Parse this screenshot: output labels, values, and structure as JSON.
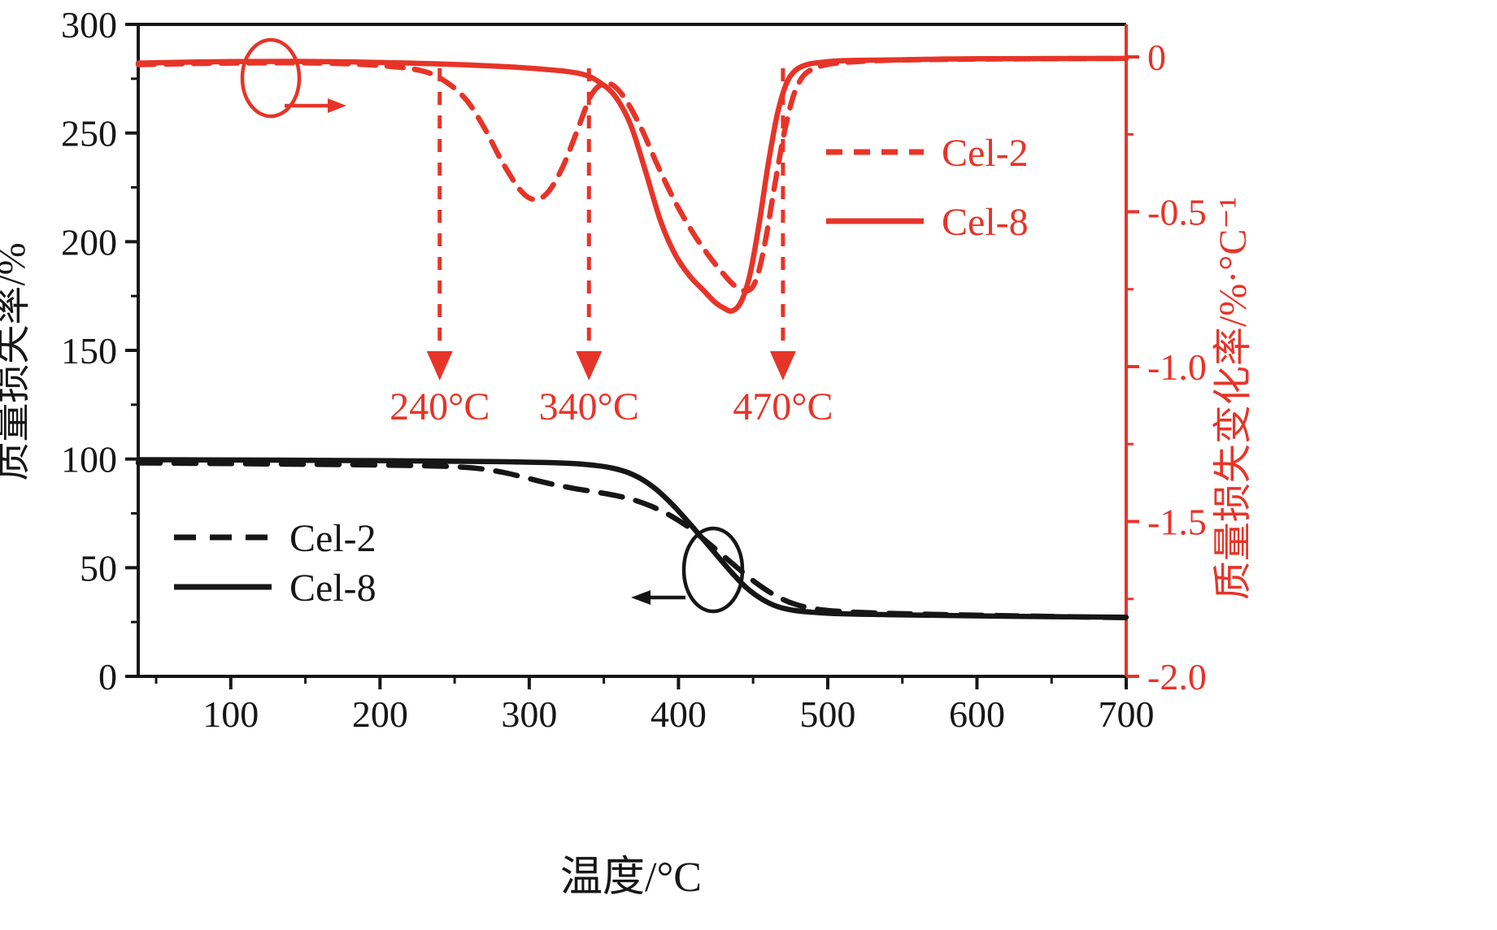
{
  "colors": {
    "accent_red": "#e73428",
    "curve_black": "#161616",
    "background": "#ffffff"
  },
  "chart_data": {
    "type": "line",
    "title": "",
    "xlabel": "温度/°C",
    "ylabel_left": "质量损失率/%",
    "ylabel_right": "质量损失变化率/%·°C⁻¹",
    "x_range": [
      38,
      700
    ],
    "x_ticks": [
      100,
      200,
      300,
      400,
      500,
      600,
      700
    ],
    "y_left_range": [
      0,
      300
    ],
    "y_left_ticks": [
      0,
      50,
      100,
      150,
      200,
      250,
      300
    ],
    "y_right_range": [
      -2.0,
      0
    ],
    "y_right_ticks": [
      0,
      -0.5,
      -1.0,
      -1.5,
      -2.0
    ],
    "grid": false,
    "legend_positions": {
      "dtg": "right of DTG dip",
      "tga": "bottom left"
    },
    "series": [
      {
        "name": "Cel-2",
        "axis": "left",
        "style": "dashed",
        "color": "#161616",
        "x": [
          38,
          80,
          130,
          180,
          230,
          255,
          270,
          285,
          300,
          315,
          330,
          345,
          358,
          370,
          382,
          394,
          406,
          418,
          430,
          442,
          454,
          466,
          478,
          492,
          510,
          540,
          580,
          630,
          700
        ],
        "y": [
          98.2,
          98.0,
          97.7,
          97.4,
          96.9,
          96.3,
          95.3,
          93.5,
          91.0,
          88.5,
          86.5,
          84.8,
          83.2,
          81.2,
          78.2,
          74.2,
          69.0,
          62.5,
          55.5,
          48.5,
          42.0,
          36.8,
          33.2,
          31.0,
          29.8,
          29.0,
          28.4,
          27.8,
          27.0
        ]
      },
      {
        "name": "Cel-8",
        "axis": "left",
        "style": "solid",
        "color": "#161616",
        "x": [
          38,
          80,
          130,
          180,
          230,
          280,
          310,
          330,
          345,
          356,
          366,
          376,
          386,
          396,
          406,
          416,
          426,
          436,
          446,
          456,
          466,
          478,
          492,
          510,
          540,
          580,
          630,
          700
        ],
        "y": [
          99.7,
          99.6,
          99.5,
          99.3,
          99.1,
          98.8,
          98.4,
          97.9,
          97.0,
          95.8,
          93.8,
          90.5,
          85.5,
          79.0,
          71.5,
          63.5,
          55.5,
          47.5,
          40.5,
          35.5,
          32.2,
          30.3,
          29.4,
          28.8,
          28.4,
          28.0,
          27.6,
          27.2
        ]
      },
      {
        "name": "Cel-2",
        "axis": "right",
        "style": "dashed",
        "color": "#e73428",
        "x": [
          38,
          100,
          160,
          200,
          228,
          244,
          258,
          270,
          282,
          294,
          303,
          312,
          322,
          332,
          342,
          352,
          362,
          374,
          386,
          398,
          410,
          420,
          430,
          438,
          446,
          452,
          458,
          465,
          472,
          480,
          492,
          520,
          580,
          700
        ],
        "y": [
          -0.025,
          -0.02,
          -0.02,
          -0.028,
          -0.045,
          -0.08,
          -0.14,
          -0.23,
          -0.34,
          -0.43,
          -0.46,
          -0.44,
          -0.36,
          -0.24,
          -0.12,
          -0.085,
          -0.12,
          -0.22,
          -0.35,
          -0.47,
          -0.57,
          -0.64,
          -0.7,
          -0.74,
          -0.755,
          -0.72,
          -0.6,
          -0.4,
          -0.22,
          -0.09,
          -0.035,
          -0.015,
          -0.008,
          -0.005
        ]
      },
      {
        "name": "Cel-8",
        "axis": "right",
        "style": "solid",
        "color": "#e73428",
        "x": [
          38,
          100,
          160,
          220,
          270,
          310,
          335,
          348,
          358,
          368,
          378,
          388,
          398,
          408,
          416,
          424,
          430,
          436,
          442,
          448,
          454,
          460,
          466,
          472,
          478,
          486,
          495,
          510,
          540,
          600,
          700
        ],
        "y": [
          -0.02,
          -0.015,
          -0.015,
          -0.02,
          -0.028,
          -0.04,
          -0.055,
          -0.085,
          -0.13,
          -0.22,
          -0.37,
          -0.53,
          -0.64,
          -0.71,
          -0.75,
          -0.79,
          -0.81,
          -0.82,
          -0.79,
          -0.7,
          -0.54,
          -0.35,
          -0.19,
          -0.09,
          -0.045,
          -0.025,
          -0.018,
          -0.012,
          -0.01,
          -0.006,
          -0.005
        ]
      }
    ],
    "annotations": {
      "vertical_arrows": [
        {
          "x": 240,
          "label": "240°C"
        },
        {
          "x": 340,
          "label": "340°C"
        },
        {
          "x": 470,
          "label": "470°C"
        }
      ]
    },
    "legends": {
      "dtg": {
        "items": [
          {
            "label": "Cel-2",
            "style": "dashed"
          },
          {
            "label": "Cel-8",
            "style": "solid"
          }
        ]
      },
      "tga": {
        "items": [
          {
            "label": "Cel-2",
            "style": "dashed"
          },
          {
            "label": "Cel-8",
            "style": "solid"
          }
        ]
      }
    }
  }
}
